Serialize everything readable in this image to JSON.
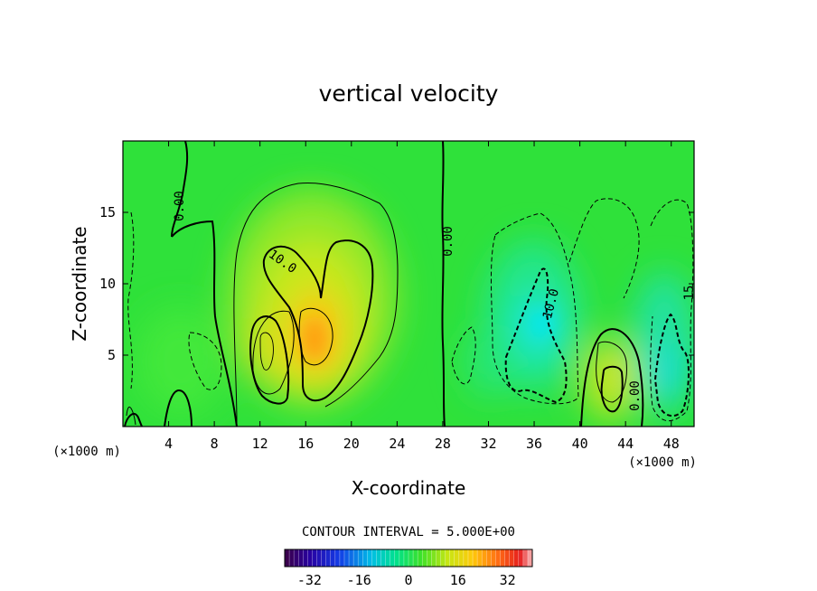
{
  "chart_data": {
    "type": "heatmap",
    "title": "vertical velocity",
    "xlabel": "X-coordinate",
    "ylabel": "Z-coordinate",
    "x_unit_left": "(×1000 m)",
    "x_unit_right": "(×1000 m)",
    "xlim": [
      0,
      50
    ],
    "ylim": [
      0,
      20
    ],
    "x_ticks": [
      "4",
      "8",
      "12",
      "16",
      "20",
      "24",
      "28",
      "32",
      "36",
      "40",
      "44",
      "48"
    ],
    "x_tick_values": [
      4,
      8,
      12,
      16,
      20,
      24,
      28,
      32,
      36,
      40,
      44,
      48
    ],
    "y_ticks": [
      "5",
      "10",
      "15"
    ],
    "y_tick_values": [
      5,
      10,
      15
    ],
    "contour_interval_text": "CONTOUR INTERVAL = 5.000E+00",
    "contour_labels": [
      {
        "text": "0.00",
        "x": 4.4,
        "y": 15.0
      },
      {
        "text": "10.0",
        "x": 13.3,
        "y": 11.7
      },
      {
        "text": "0.00",
        "x": 28.3,
        "y": 13.0
      },
      {
        "text": "10.0",
        "x": 36.7,
        "y": 8.7
      },
      {
        "text": "0.00",
        "x": 44.6,
        "y": 1.9
      },
      {
        "text": "15",
        "x": 49.4,
        "y": 9.4
      }
    ],
    "colorbar": {
      "range": [
        -40,
        40
      ],
      "ticks": [
        "-32",
        "-16",
        "0",
        "16",
        "32"
      ],
      "tick_values": [
        -32,
        -16,
        0,
        16,
        32
      ]
    },
    "field_features": [
      {
        "kind": "updraft",
        "x": 16.3,
        "z": 5.5,
        "max": 14
      },
      {
        "kind": "updraft",
        "x": 12.6,
        "z": 5.5,
        "max": 10
      },
      {
        "kind": "updraft",
        "x": 18.5,
        "z": 10.5,
        "max": 10
      },
      {
        "kind": "updraft",
        "x": 42.4,
        "z": 3.0,
        "max": 11
      },
      {
        "kind": "downdraft",
        "x": 36.0,
        "z": 6.0,
        "min": -12
      },
      {
        "kind": "downdraft",
        "x": 47.5,
        "z": 4.0,
        "min": -10
      }
    ]
  }
}
